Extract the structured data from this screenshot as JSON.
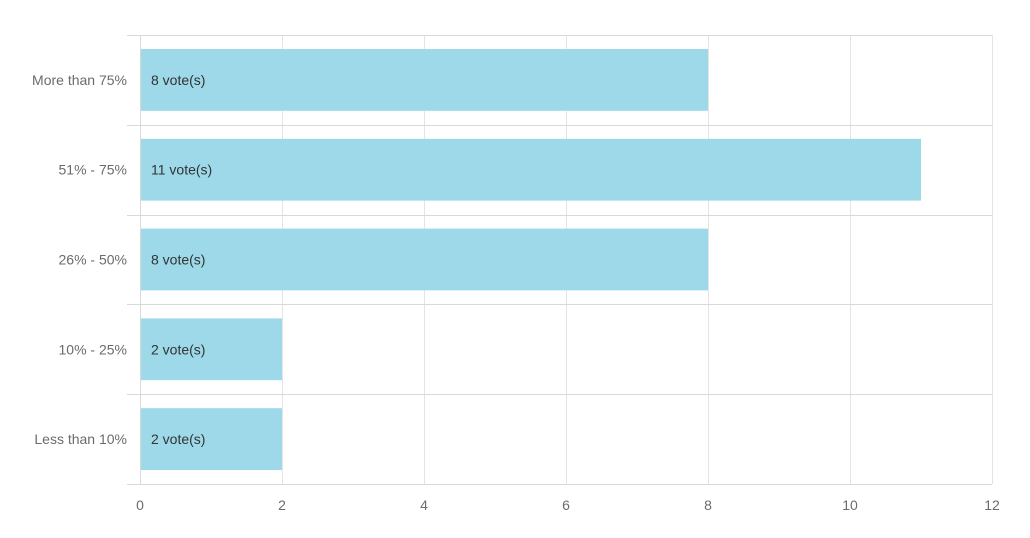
{
  "chart_data": {
    "type": "bar",
    "orientation": "horizontal",
    "title": "",
    "xlabel": "",
    "ylabel": "",
    "categories": [
      "More than 75%",
      "51% - 75%",
      "26% - 50%",
      "10% - 25%",
      "Less than 10%"
    ],
    "values": [
      8,
      11,
      8,
      2,
      2
    ],
    "data_labels": [
      "8 vote(s)",
      "11 vote(s)",
      "8 vote(s)",
      "2 vote(s)",
      "2 vote(s)"
    ],
    "xlim": [
      0,
      12
    ],
    "xticks": [
      0,
      2,
      4,
      6,
      8,
      10,
      12
    ],
    "grid": true,
    "legend": "none",
    "bar_color": "#9dd9e9"
  }
}
